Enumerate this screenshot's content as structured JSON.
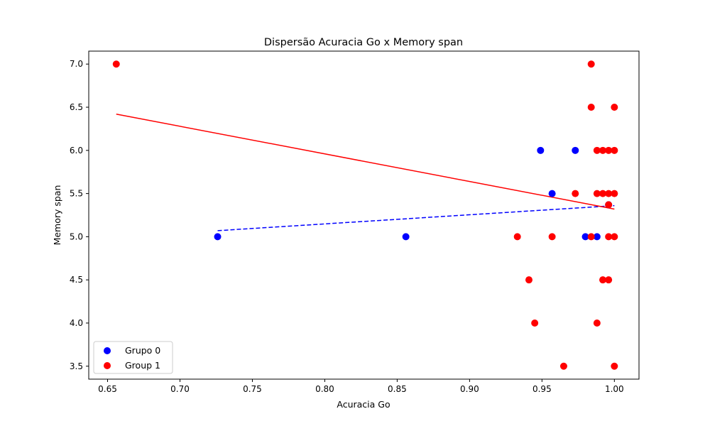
{
  "chart_data": {
    "type": "scatter",
    "title": "Dispersão Acuracia Go x Memory span",
    "xlabel": "Acuracia Go",
    "ylabel": "Memory span",
    "xlim": [
      0.637,
      1.017
    ],
    "ylim": [
      3.35,
      7.15
    ],
    "xticks": [
      0.65,
      0.7,
      0.75,
      0.8,
      0.85,
      0.9,
      0.95,
      1.0
    ],
    "xtick_labels": [
      "0.65",
      "0.70",
      "0.75",
      "0.80",
      "0.85",
      "0.90",
      "0.95",
      "1.00"
    ],
    "yticks": [
      3.5,
      4.0,
      4.5,
      5.0,
      5.5,
      6.0,
      6.5,
      7.0
    ],
    "ytick_labels": [
      "3.5",
      "4.0",
      "4.5",
      "5.0",
      "5.5",
      "6.0",
      "6.5",
      "7.0"
    ],
    "grid": false,
    "legend_position": "lower-left",
    "series": [
      {
        "name": "Grupo 0",
        "color": "#0000ff",
        "points": [
          [
            0.726,
            5.0
          ],
          [
            0.856,
            5.0
          ],
          [
            0.949,
            6.0
          ],
          [
            0.957,
            5.5
          ],
          [
            0.973,
            6.0
          ],
          [
            0.98,
            5.0
          ],
          [
            0.988,
            5.0
          ],
          [
            0.996,
            5.37
          ]
        ],
        "trendline": {
          "x": [
            0.726,
            1.0
          ],
          "y": [
            5.07,
            5.36
          ],
          "style": "dashed"
        }
      },
      {
        "name": "Group 1",
        "color": "#ff0000",
        "points": [
          [
            0.656,
            7.0
          ],
          [
            0.933,
            5.0
          ],
          [
            0.941,
            4.5
          ],
          [
            0.945,
            4.0
          ],
          [
            0.957,
            5.0
          ],
          [
            0.965,
            3.5
          ],
          [
            0.973,
            5.5
          ],
          [
            0.984,
            7.0
          ],
          [
            0.984,
            6.5
          ],
          [
            0.984,
            5.0
          ],
          [
            0.988,
            6.0
          ],
          [
            0.988,
            5.5
          ],
          [
            0.988,
            4.0
          ],
          [
            0.992,
            6.0
          ],
          [
            0.992,
            5.5
          ],
          [
            0.992,
            4.5
          ],
          [
            0.996,
            6.0
          ],
          [
            0.996,
            5.5
          ],
          [
            0.996,
            5.0
          ],
          [
            0.996,
            4.5
          ],
          [
            0.996,
            5.37
          ],
          [
            1.0,
            6.5
          ],
          [
            1.0,
            6.0
          ],
          [
            1.0,
            5.5
          ],
          [
            1.0,
            5.0
          ],
          [
            1.0,
            3.5
          ]
        ],
        "trendline": {
          "x": [
            0.656,
            1.0
          ],
          "y": [
            6.42,
            5.32
          ],
          "style": "solid"
        }
      }
    ]
  }
}
